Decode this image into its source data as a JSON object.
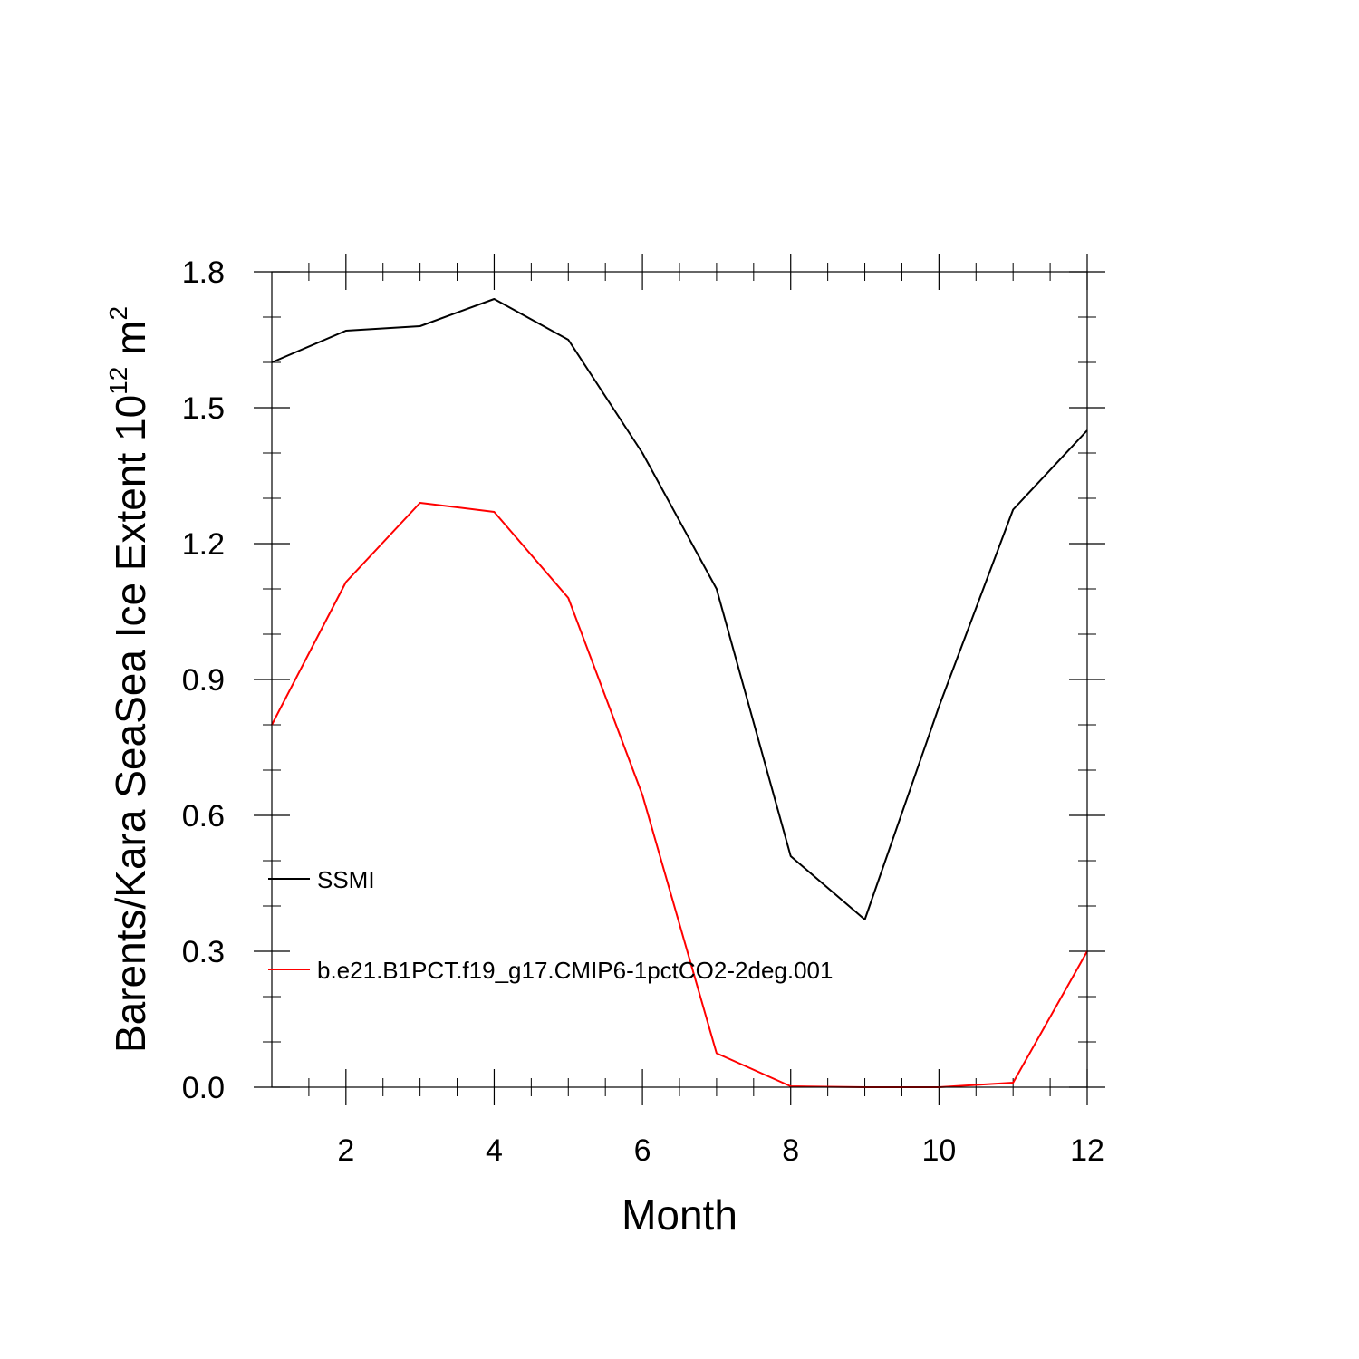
{
  "chart_data": {
    "type": "line",
    "title": "",
    "xlabel": "Month",
    "ylabel": {
      "text": "Barents/Kara SeaSea Ice Extent 10",
      "superscript": "12",
      "unit": " m",
      "unit_superscript": "2"
    },
    "xlim": [
      1,
      12
    ],
    "ylim": [
      0.0,
      1.8
    ],
    "x_ticks": [
      2,
      4,
      6,
      8,
      10,
      12
    ],
    "x_tick_labels": [
      "2",
      "4",
      "6",
      "8",
      "10",
      "12"
    ],
    "y_ticks": [
      0.0,
      0.3,
      0.6,
      0.9,
      1.2,
      1.5,
      1.8
    ],
    "y_tick_labels": [
      "0.0",
      "0.3",
      "0.6",
      "0.9",
      "1.2",
      "1.5",
      "1.8"
    ],
    "grid": false,
    "legend_position": "left",
    "x": [
      1,
      2,
      3,
      4,
      5,
      6,
      7,
      8,
      9,
      10,
      11,
      12
    ],
    "series": [
      {
        "name": "SSMI",
        "color": "#000000",
        "values": [
          1.6,
          1.67,
          1.68,
          1.74,
          1.65,
          1.4,
          1.1,
          0.51,
          0.37,
          0.84,
          1.275,
          1.45
        ]
      },
      {
        "name": "b.e21.B1PCT.f19_g17.CMIP6-1pctCO2-2deg.001",
        "color": "#ff0000",
        "values": [
          0.8,
          1.115,
          1.29,
          1.27,
          1.08,
          0.645,
          0.075,
          0.002,
          0.0,
          0.0,
          0.01,
          0.3
        ]
      }
    ]
  }
}
